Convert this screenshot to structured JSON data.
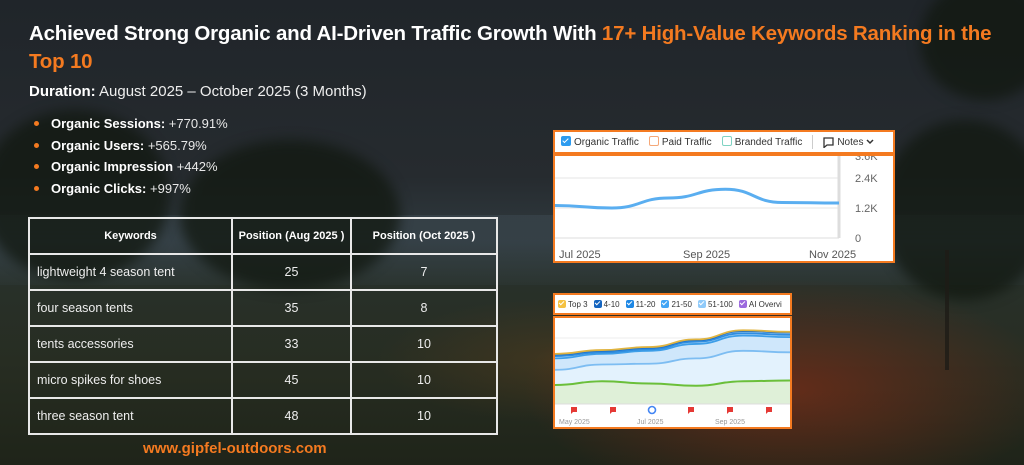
{
  "headline": {
    "part1": "Achieved Strong Organic and AI-Driven Traffic Growth With ",
    "highlight": "17+ High-Value Keywords Ranking in the Top 10"
  },
  "duration": {
    "label": "Duration:",
    "value": "August  2025 – October 2025 (3 Months)"
  },
  "stats": [
    {
      "label": "Organic Sessions:",
      "value": "+770.91%"
    },
    {
      "label": "Organic Users:",
      "value": "+565.79%"
    },
    {
      "label": "Organic Impression",
      "value": "+442%"
    },
    {
      "label": "Organic  Clicks:",
      "value": "+997%"
    }
  ],
  "keyword_table": {
    "headers": [
      "Keywords",
      "Position (Aug 2025 )",
      "Position (Oct  2025 )"
    ],
    "rows": [
      [
        "lightweight 4 season tent",
        "25",
        "7"
      ],
      [
        "four season tents",
        "35",
        "8"
      ],
      [
        "tents accessories",
        "33",
        "10"
      ],
      [
        "micro spikes for shoes",
        "45",
        "10"
      ],
      [
        "three season tent",
        "48",
        "10"
      ]
    ]
  },
  "website": "www.gipfel-outdoors.com",
  "colors": {
    "accent": "#f47a20",
    "traffic_line": "#5aaef0"
  },
  "chart_data": [
    {
      "type": "line",
      "title": "",
      "legend": [
        {
          "label": "Organic Traffic",
          "checked": true,
          "color": "#2d9cf0"
        },
        {
          "label": "Paid Traffic",
          "checked": false,
          "color": "#f5a878"
        },
        {
          "label": "Branded Traffic",
          "checked": false,
          "color": "#7fd3c3"
        }
      ],
      "notes_label": "Notes",
      "x_ticks": [
        "Jul 2025",
        "Sep 2025",
        "Nov 2025"
      ],
      "y_ticks": [
        "0",
        "1.2K",
        "2.4K",
        "3.6K"
      ],
      "ylim": [
        0,
        3600
      ],
      "series": [
        {
          "name": "Organic Traffic",
          "x": [
            "Jun 2025",
            "Jul 2025",
            "Aug 2025",
            "Sep 2025",
            "Oct 2025",
            "Nov 2025"
          ],
          "values": [
            1300,
            1200,
            1600,
            1950,
            1420,
            1400
          ]
        }
      ]
    },
    {
      "type": "area",
      "title": "",
      "legend": [
        {
          "label": "Top 3",
          "color": "#f5c242"
        },
        {
          "label": "4-10",
          "color": "#1565c0"
        },
        {
          "label": "11-20",
          "color": "#1e88e5"
        },
        {
          "label": "21-50",
          "color": "#42a5f5"
        },
        {
          "label": "51-100",
          "color": "#90caf9"
        },
        {
          "label": "AI Overvi",
          "color": "#9c6ade"
        }
      ],
      "x_ticks": [
        "May 2025",
        "Jul 2025",
        "Sep 2025"
      ],
      "series": [
        {
          "name": "AI Overview",
          "values": [
            0.25,
            0.3,
            0.27,
            0.24,
            0.3,
            0.31
          ]
        },
        {
          "name": "51-100",
          "values": [
            0.45,
            0.52,
            0.53,
            0.6,
            0.7,
            0.68
          ]
        },
        {
          "name": "21-50",
          "values": [
            0.6,
            0.66,
            0.7,
            0.79,
            0.9,
            0.88
          ]
        },
        {
          "name": "11-20",
          "values": [
            0.63,
            0.68,
            0.72,
            0.82,
            0.93,
            0.91
          ]
        },
        {
          "name": "4-10",
          "values": [
            0.65,
            0.7,
            0.74,
            0.84,
            0.96,
            0.94
          ]
        },
        {
          "name": "Top 3",
          "values": [
            0.66,
            0.71,
            0.75,
            0.85,
            0.97,
            0.95
          ]
        }
      ],
      "markers": [
        "flag",
        "flag",
        "google",
        "flag",
        "flag",
        "flag"
      ]
    }
  ]
}
